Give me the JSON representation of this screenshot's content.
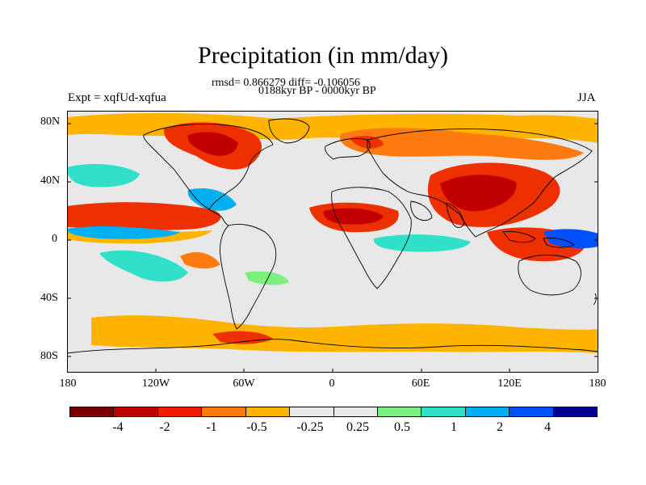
{
  "title": "Precipitation (in mm/day)",
  "stats": "rmsd= 0.866279 diff= -0.106056",
  "period": "0188kyr BP - 0000kyr BP",
  "experiment": "Expt = xqfUd-xqfua",
  "season": "JJA",
  "y_ticks": [
    "80N",
    "40N",
    "0",
    "40S",
    "80S"
  ],
  "x_ticks": [
    "180",
    "120W",
    "60W",
    "0",
    "60E",
    "120E",
    "180"
  ],
  "colorbar": {
    "colors": [
      "#7a0000",
      "#c00000",
      "#ee1c00",
      "#ff7a10",
      "#ffb400",
      "#e8e8e8",
      "#e8e8e8",
      "#7cf07c",
      "#30e0c8",
      "#00b0f0",
      "#0050f8",
      "#000090"
    ],
    "labels": [
      "-4",
      "-2",
      "-1",
      "-0.5",
      "-0.25",
      "0.25",
      "0.5",
      "1",
      "2",
      "4"
    ]
  },
  "colors": {
    "ocean_background": "#e8e8e8",
    "dry_strong": "#c00000",
    "dry": "#ee3000",
    "dry_mild": "#ffb400",
    "wet_mild": "#7cf07c",
    "wet": "#30e0c8",
    "wet_strong": "#00b0f0",
    "coastline": "#000000"
  }
}
